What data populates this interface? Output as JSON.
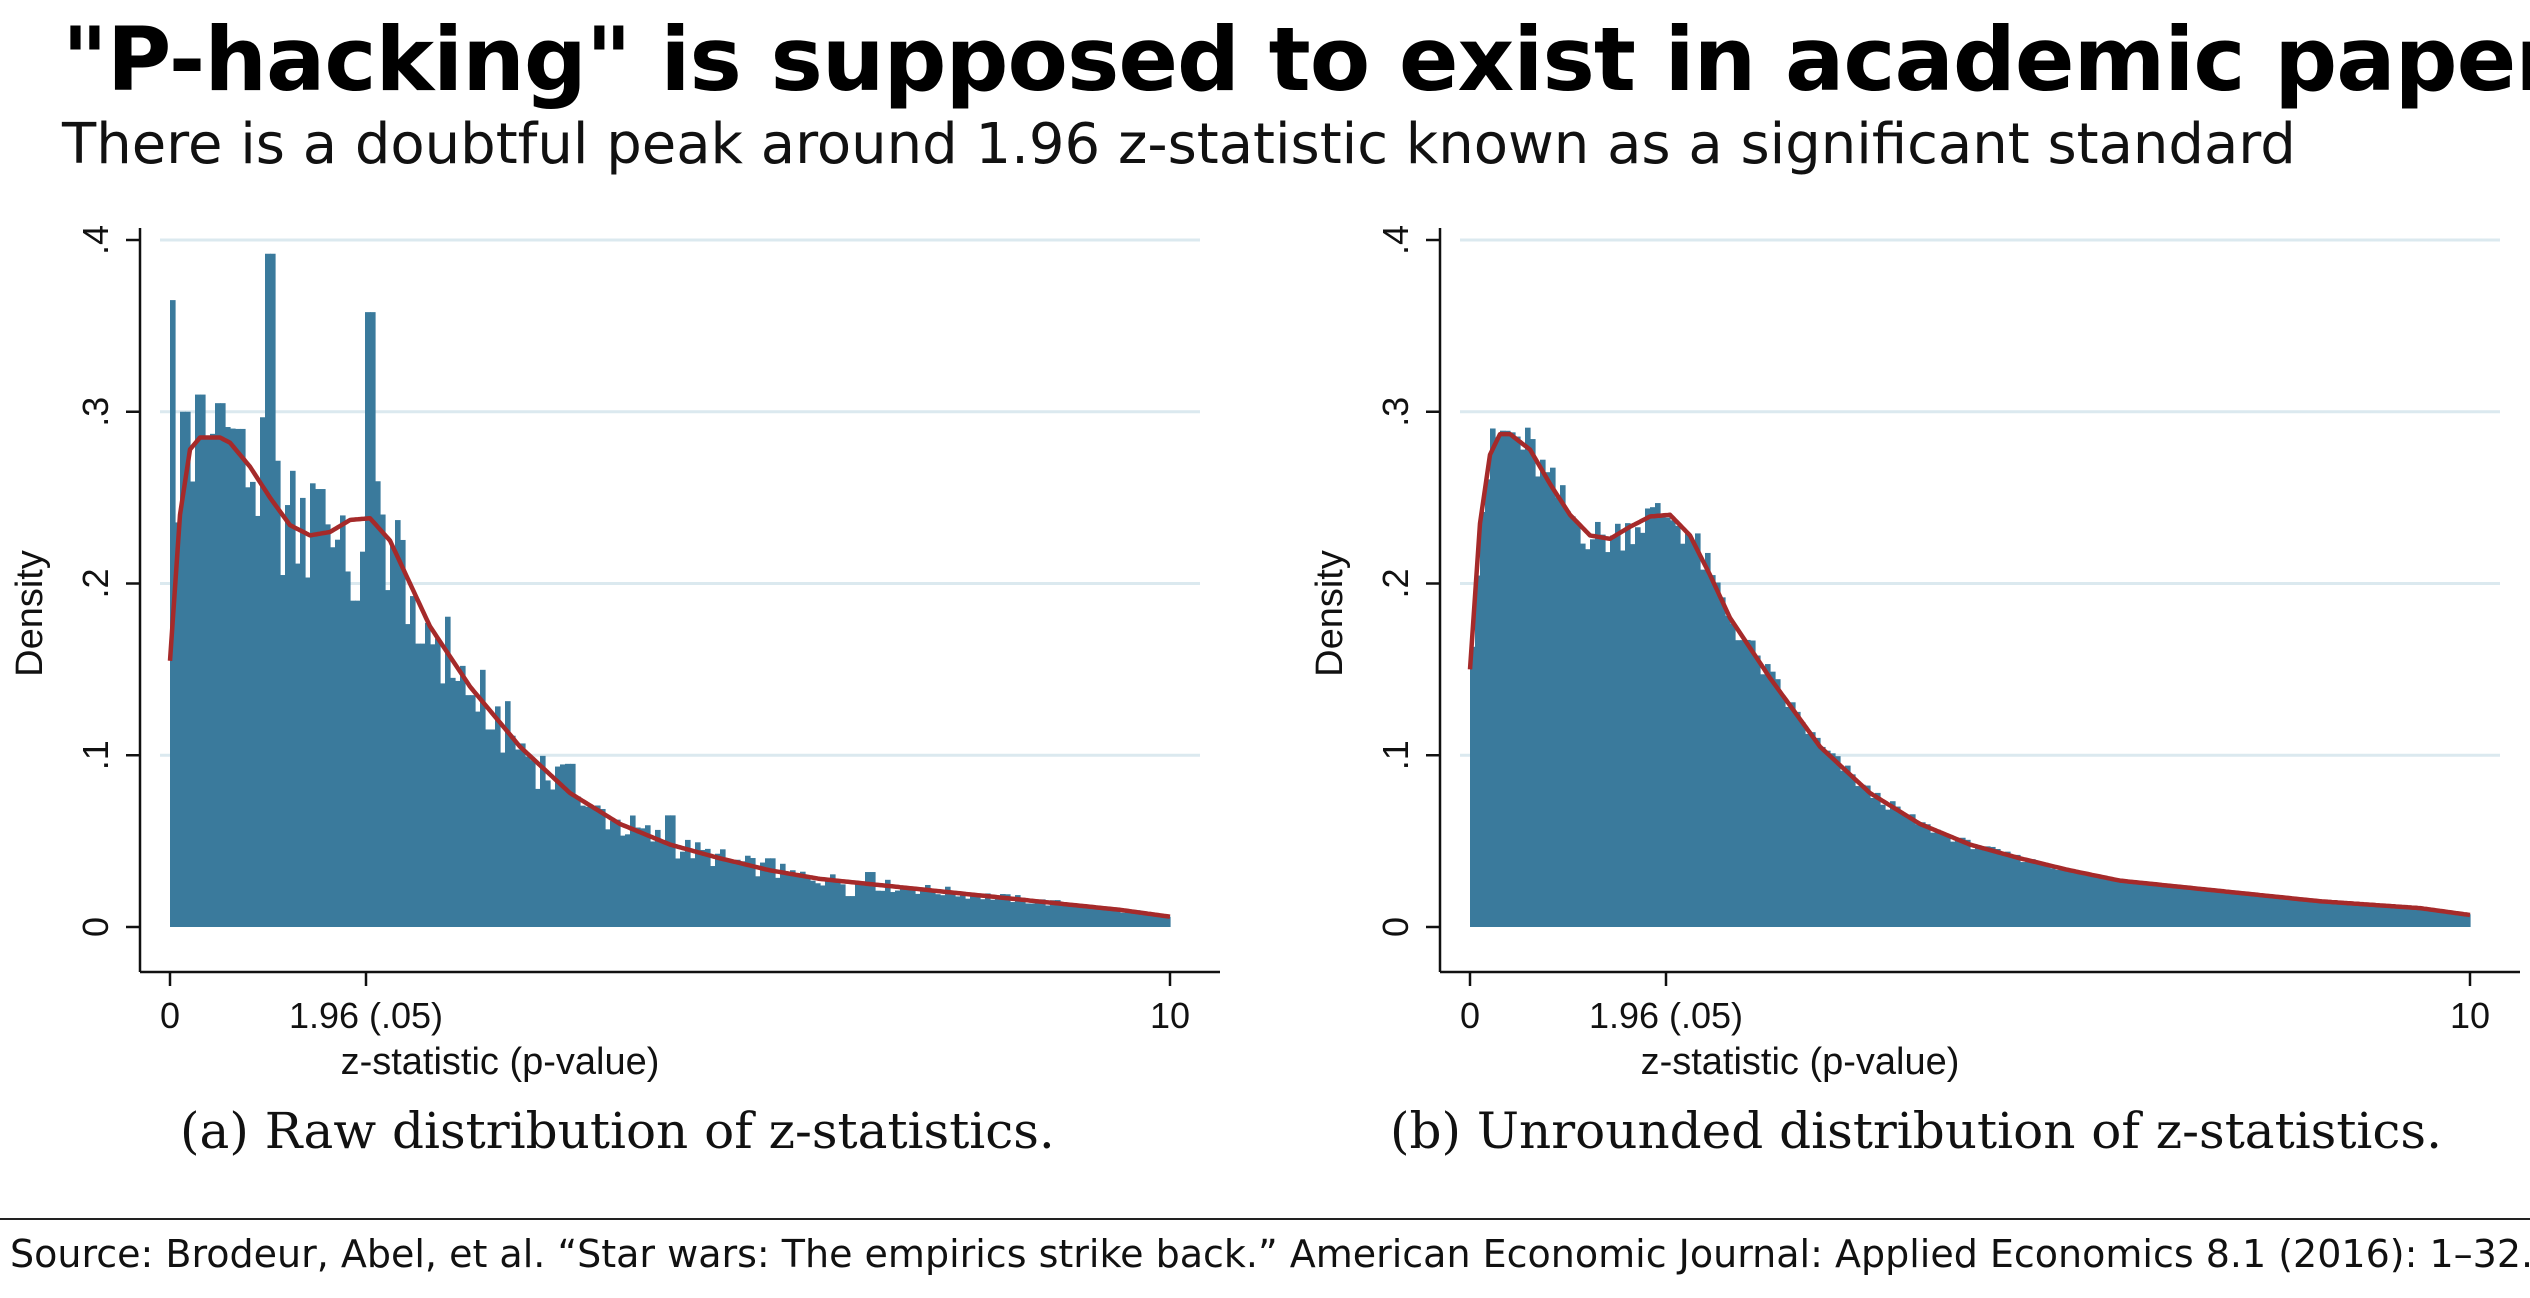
{
  "headline": "\"P-hacking\" is supposed to exist in academic paper",
  "subheadline": "There is a doubtful peak around 1.96 z-statistic known as a significant standard",
  "source": "Source: Brodeur, Abel, et al. “Star wars: The empirics strike back.” American Economic Journal: Applied Economics 8.1 (2016): 1–32.",
  "colors": {
    "bar": "#3a7a9c",
    "kde": "#a52a2a",
    "grid": "#dbe9ef",
    "axis": "#111111"
  },
  "chart_data": [
    {
      "type": "bar",
      "caption": "(a) Raw distribution of z-statistics.",
      "xlabel": "z-statistic (p-value)",
      "ylabel": "Density",
      "xlim": [
        0,
        10
      ],
      "ylim": [
        0,
        0.4
      ],
      "x_ticks": [
        {
          "value": 0,
          "label": "0"
        },
        {
          "value": 1.96,
          "label": "1.96 (.05)"
        },
        {
          "value": 10,
          "label": "10"
        }
      ],
      "y_ticks": [
        {
          "value": 0,
          "label": "0"
        },
        {
          "value": 0.1,
          "label": ".1"
        },
        {
          "value": 0.2,
          "label": ".2"
        },
        {
          "value": 0.3,
          "label": ".3"
        },
        {
          "value": 0.4,
          "label": ".4"
        }
      ],
      "grid": "horizontal",
      "histogram": {
        "bin_width": 0.05,
        "density_curve": [
          [
            0,
            0.155
          ],
          [
            0.1,
            0.24
          ],
          [
            0.2,
            0.278
          ],
          [
            0.3,
            0.285
          ],
          [
            0.5,
            0.285
          ],
          [
            0.6,
            0.282
          ],
          [
            0.8,
            0.268
          ],
          [
            1.0,
            0.25
          ],
          [
            1.2,
            0.234
          ],
          [
            1.4,
            0.228
          ],
          [
            1.6,
            0.23
          ],
          [
            1.8,
            0.237
          ],
          [
            2.0,
            0.238
          ],
          [
            2.2,
            0.225
          ],
          [
            2.4,
            0.2
          ],
          [
            2.6,
            0.175
          ],
          [
            3.0,
            0.14
          ],
          [
            3.5,
            0.105
          ],
          [
            4.0,
            0.078
          ],
          [
            4.5,
            0.06
          ],
          [
            5.0,
            0.048
          ],
          [
            5.5,
            0.04
          ],
          [
            6.0,
            0.033
          ],
          [
            6.5,
            0.028
          ],
          [
            7.0,
            0.025
          ],
          [
            7.5,
            0.022
          ],
          [
            8.0,
            0.019
          ],
          [
            8.5,
            0.016
          ],
          [
            9.0,
            0.013
          ],
          [
            9.5,
            0.01
          ],
          [
            10.0,
            0.006
          ]
        ],
        "spikes": [
          [
            0.0,
            0.365
          ],
          [
            0.15,
            0.3
          ],
          [
            0.3,
            0.31
          ],
          [
            0.5,
            0.305
          ],
          [
            0.7,
            0.29
          ],
          [
            1.0,
            0.392
          ],
          [
            1.5,
            0.255
          ],
          [
            2.0,
            0.358
          ],
          [
            3.0,
            0.135
          ],
          [
            4.0,
            0.095
          ],
          [
            5.0,
            0.065
          ],
          [
            6.0,
            0.04
          ],
          [
            7.0,
            0.032
          ]
        ],
        "dips": [
          [
            1.85,
            0.19
          ],
          [
            2.5,
            0.165
          ],
          [
            3.2,
            0.115
          ],
          [
            4.2,
            0.07
          ],
          [
            6.8,
            0.018
          ]
        ]
      },
      "series": [
        {
          "name": "",
          "style": "kde"
        }
      ]
    },
    {
      "type": "bar",
      "caption": "(b) Unrounded distribution of z-statistics.",
      "xlabel": "z-statistic (p-value)",
      "ylabel": "Density",
      "xlim": [
        0,
        10
      ],
      "ylim": [
        0,
        0.4
      ],
      "x_ticks": [
        {
          "value": 0,
          "label": "0"
        },
        {
          "value": 1.96,
          "label": "1.96 (.05)"
        },
        {
          "value": 10,
          "label": "10"
        }
      ],
      "y_ticks": [
        {
          "value": 0,
          "label": "0"
        },
        {
          "value": 0.1,
          "label": ".1"
        },
        {
          "value": 0.2,
          "label": ".2"
        },
        {
          "value": 0.3,
          "label": ".3"
        },
        {
          "value": 0.4,
          "label": ".4"
        }
      ],
      "grid": "horizontal",
      "histogram": {
        "bin_width": 0.05,
        "density_curve": [
          [
            0,
            0.15
          ],
          [
            0.1,
            0.235
          ],
          [
            0.2,
            0.275
          ],
          [
            0.3,
            0.287
          ],
          [
            0.4,
            0.287
          ],
          [
            0.6,
            0.278
          ],
          [
            0.8,
            0.258
          ],
          [
            1.0,
            0.24
          ],
          [
            1.2,
            0.228
          ],
          [
            1.4,
            0.226
          ],
          [
            1.6,
            0.233
          ],
          [
            1.8,
            0.239
          ],
          [
            2.0,
            0.24
          ],
          [
            2.2,
            0.228
          ],
          [
            2.4,
            0.205
          ],
          [
            2.6,
            0.18
          ],
          [
            3.0,
            0.145
          ],
          [
            3.5,
            0.105
          ],
          [
            4.0,
            0.078
          ],
          [
            4.5,
            0.06
          ],
          [
            5.0,
            0.048
          ],
          [
            5.5,
            0.04
          ],
          [
            6.0,
            0.033
          ],
          [
            6.5,
            0.027
          ],
          [
            7.0,
            0.024
          ],
          [
            7.5,
            0.021
          ],
          [
            8.0,
            0.018
          ],
          [
            8.5,
            0.015
          ],
          [
            9.0,
            0.013
          ],
          [
            9.5,
            0.011
          ],
          [
            10.0,
            0.007
          ]
        ],
        "spikes": [],
        "dips": []
      },
      "series": [
        {
          "name": "",
          "style": "kde"
        }
      ]
    }
  ]
}
